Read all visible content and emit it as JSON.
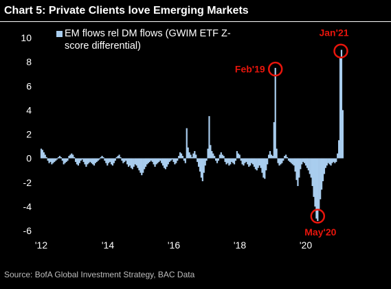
{
  "title": "Chart 5: Private Clients love Emerging Markets",
  "source": "Source:  BofA Global Investment Strategy, BAC Data",
  "colors": {
    "bar": "#a9cdee",
    "highlight": "#e8150c",
    "text": "#ffffff",
    "background": "#000000"
  },
  "chart_data": {
    "type": "bar",
    "series": [
      {
        "name": "EM flows rel DM flows (GWIM ETF Z-score differential)"
      }
    ],
    "ylim": [
      -6,
      10
    ],
    "yticks": [
      "-6",
      "-4",
      "-2",
      "0",
      "2",
      "4",
      "6",
      "8",
      "10"
    ],
    "xlim": [
      2012,
      2021.3
    ],
    "xticks": [
      "'12",
      "'14",
      "'16",
      "'18",
      "'20"
    ],
    "grid": false,
    "legend_position": "top-left",
    "points": [
      [
        2012.0,
        0.8
      ],
      [
        2012.04,
        0.7
      ],
      [
        2012.08,
        0.5
      ],
      [
        2012.12,
        0.3
      ],
      [
        2012.16,
        0.1
      ],
      [
        2012.2,
        -0.2
      ],
      [
        2012.24,
        -0.4
      ],
      [
        2012.28,
        -0.3
      ],
      [
        2012.32,
        -0.5
      ],
      [
        2012.36,
        -0.4
      ],
      [
        2012.4,
        -0.3
      ],
      [
        2012.44,
        -0.2
      ],
      [
        2012.48,
        -0.1
      ],
      [
        2012.52,
        0.1
      ],
      [
        2012.56,
        0.2
      ],
      [
        2012.6,
        0.1
      ],
      [
        2012.64,
        -0.2
      ],
      [
        2012.68,
        -0.5
      ],
      [
        2012.72,
        -0.4
      ],
      [
        2012.76,
        -0.3
      ],
      [
        2012.8,
        -0.2
      ],
      [
        2012.84,
        0.2
      ],
      [
        2012.88,
        0.3
      ],
      [
        2012.92,
        0.4
      ],
      [
        2012.96,
        0.3
      ],
      [
        2013.0,
        0.1
      ],
      [
        2013.04,
        -0.3
      ],
      [
        2013.08,
        -0.5
      ],
      [
        2013.12,
        -0.6
      ],
      [
        2013.16,
        -0.4
      ],
      [
        2013.2,
        -0.2
      ],
      [
        2013.24,
        -0.1
      ],
      [
        2013.28,
        -0.3
      ],
      [
        2013.32,
        -0.5
      ],
      [
        2013.36,
        -0.7
      ],
      [
        2013.4,
        -0.5
      ],
      [
        2013.44,
        -0.4
      ],
      [
        2013.48,
        -0.3
      ],
      [
        2013.52,
        -0.4
      ],
      [
        2013.56,
        -0.5
      ],
      [
        2013.6,
        -0.6
      ],
      [
        2013.64,
        -0.4
      ],
      [
        2013.68,
        -0.3
      ],
      [
        2013.72,
        -0.2
      ],
      [
        2013.76,
        -0.1
      ],
      [
        2013.8,
        0.1
      ],
      [
        2013.84,
        0.2
      ],
      [
        2013.88,
        0.1
      ],
      [
        2013.92,
        -0.2
      ],
      [
        2013.96,
        -0.4
      ],
      [
        2014.0,
        -0.6
      ],
      [
        2014.04,
        -0.4
      ],
      [
        2014.08,
        -0.3
      ],
      [
        2014.12,
        -0.5
      ],
      [
        2014.16,
        -0.6
      ],
      [
        2014.2,
        -0.4
      ],
      [
        2014.24,
        -0.2
      ],
      [
        2014.28,
        0.1
      ],
      [
        2014.32,
        0.2
      ],
      [
        2014.36,
        0.3
      ],
      [
        2014.4,
        0.1
      ],
      [
        2014.44,
        -0.2
      ],
      [
        2014.48,
        -0.4
      ],
      [
        2014.52,
        -0.3
      ],
      [
        2014.56,
        -0.2
      ],
      [
        2014.6,
        -0.5
      ],
      [
        2014.64,
        -0.7
      ],
      [
        2014.68,
        -0.6
      ],
      [
        2014.72,
        -0.8
      ],
      [
        2014.76,
        -0.9
      ],
      [
        2014.8,
        -0.7
      ],
      [
        2014.84,
        -0.5
      ],
      [
        2014.88,
        -0.6
      ],
      [
        2014.92,
        -0.8
      ],
      [
        2014.96,
        -1.0
      ],
      [
        2015.0,
        -1.2
      ],
      [
        2015.04,
        -1.4
      ],
      [
        2015.08,
        -1.2
      ],
      [
        2015.12,
        -0.9
      ],
      [
        2015.16,
        -0.7
      ],
      [
        2015.2,
        -0.5
      ],
      [
        2015.24,
        -0.4
      ],
      [
        2015.28,
        -0.3
      ],
      [
        2015.32,
        -0.2
      ],
      [
        2015.36,
        -0.3
      ],
      [
        2015.4,
        -0.5
      ],
      [
        2015.44,
        -0.7
      ],
      [
        2015.48,
        -0.5
      ],
      [
        2015.52,
        -0.4
      ],
      [
        2015.56,
        -0.3
      ],
      [
        2015.6,
        -0.2
      ],
      [
        2015.64,
        -0.4
      ],
      [
        2015.68,
        -0.6
      ],
      [
        2015.72,
        -0.8
      ],
      [
        2015.76,
        -0.9
      ],
      [
        2015.8,
        -0.7
      ],
      [
        2015.84,
        -0.5
      ],
      [
        2015.88,
        -0.3
      ],
      [
        2015.92,
        -0.2
      ],
      [
        2015.96,
        -0.1
      ],
      [
        2016.0,
        -0.3
      ],
      [
        2016.04,
        -0.5
      ],
      [
        2016.08,
        -0.4
      ],
      [
        2016.12,
        -0.2
      ],
      [
        2016.16,
        0.2
      ],
      [
        2016.2,
        0.5
      ],
      [
        2016.24,
        0.4
      ],
      [
        2016.28,
        0.2
      ],
      [
        2016.32,
        -0.2
      ],
      [
        2016.36,
        -0.4
      ],
      [
        2016.4,
        2.5
      ],
      [
        2016.44,
        0.9
      ],
      [
        2016.48,
        0.5
      ],
      [
        2016.52,
        0.3
      ],
      [
        2016.56,
        0.1
      ],
      [
        2016.6,
        0.4
      ],
      [
        2016.64,
        0.6
      ],
      [
        2016.68,
        0.3
      ],
      [
        2016.72,
        -0.3
      ],
      [
        2016.76,
        -0.7
      ],
      [
        2016.8,
        -1.1
      ],
      [
        2016.84,
        -1.6
      ],
      [
        2016.88,
        -1.9
      ],
      [
        2016.92,
        -1.2
      ],
      [
        2016.96,
        -0.6
      ],
      [
        2017.0,
        -0.2
      ],
      [
        2017.04,
        0.8
      ],
      [
        2017.08,
        3.5
      ],
      [
        2017.12,
        1.1
      ],
      [
        2017.16,
        0.6
      ],
      [
        2017.2,
        0.4
      ],
      [
        2017.24,
        0.2
      ],
      [
        2017.28,
        -0.2
      ],
      [
        2017.32,
        -0.4
      ],
      [
        2017.36,
        -0.2
      ],
      [
        2017.4,
        0.3
      ],
      [
        2017.44,
        0.5
      ],
      [
        2017.48,
        0.3
      ],
      [
        2017.52,
        0.2
      ],
      [
        2017.56,
        -0.3
      ],
      [
        2017.6,
        -0.5
      ],
      [
        2017.64,
        -0.4
      ],
      [
        2017.68,
        -0.6
      ],
      [
        2017.72,
        -0.5
      ],
      [
        2017.76,
        -0.3
      ],
      [
        2017.8,
        -0.4
      ],
      [
        2017.84,
        -0.5
      ],
      [
        2017.88,
        -0.2
      ],
      [
        2017.92,
        0.6
      ],
      [
        2017.96,
        0.4
      ],
      [
        2018.0,
        0.3
      ],
      [
        2018.04,
        -0.2
      ],
      [
        2018.08,
        -0.5
      ],
      [
        2018.12,
        -0.6
      ],
      [
        2018.16,
        -0.4
      ],
      [
        2018.2,
        -0.3
      ],
      [
        2018.24,
        -0.5
      ],
      [
        2018.28,
        -0.7
      ],
      [
        2018.32,
        -0.6
      ],
      [
        2018.36,
        -0.4
      ],
      [
        2018.4,
        -0.5
      ],
      [
        2018.44,
        -0.7
      ],
      [
        2018.48,
        -0.9
      ],
      [
        2018.52,
        -1.0
      ],
      [
        2018.56,
        -0.8
      ],
      [
        2018.6,
        -0.6
      ],
      [
        2018.64,
        -0.8
      ],
      [
        2018.68,
        -1.2
      ],
      [
        2018.72,
        -1.6
      ],
      [
        2018.76,
        -1.7
      ],
      [
        2018.8,
        -1.0
      ],
      [
        2018.84,
        -0.5
      ],
      [
        2018.88,
        0.3
      ],
      [
        2018.92,
        0.6
      ],
      [
        2018.96,
        0.3
      ],
      [
        2019.0,
        0.2
      ],
      [
        2019.04,
        3.0
      ],
      [
        2019.08,
        7.5
      ],
      [
        2019.12,
        0.8
      ],
      [
        2019.16,
        -0.4
      ],
      [
        2019.2,
        -0.6
      ],
      [
        2019.24,
        -0.5
      ],
      [
        2019.28,
        -0.4
      ],
      [
        2019.32,
        -0.2
      ],
      [
        2019.36,
        0.2
      ],
      [
        2019.4,
        0.3
      ],
      [
        2019.44,
        0.1
      ],
      [
        2019.48,
        -0.2
      ],
      [
        2019.52,
        -0.3
      ],
      [
        2019.56,
        -0.4
      ],
      [
        2019.6,
        -0.5
      ],
      [
        2019.64,
        -0.6
      ],
      [
        2019.68,
        -1.1
      ],
      [
        2019.72,
        -1.8
      ],
      [
        2019.76,
        -2.3
      ],
      [
        2019.8,
        -1.6
      ],
      [
        2019.84,
        -0.9
      ],
      [
        2019.88,
        -0.5
      ],
      [
        2019.92,
        -0.3
      ],
      [
        2019.96,
        -0.4
      ],
      [
        2020.0,
        -0.6
      ],
      [
        2020.04,
        -0.8
      ],
      [
        2020.08,
        -1.0
      ],
      [
        2020.12,
        -1.3
      ],
      [
        2020.16,
        -1.6
      ],
      [
        2020.2,
        -2.3
      ],
      [
        2020.24,
        -3.2
      ],
      [
        2020.28,
        -4.0
      ],
      [
        2020.32,
        -5.0
      ],
      [
        2020.36,
        -5.2
      ],
      [
        2020.4,
        -4.2
      ],
      [
        2020.44,
        -3.4
      ],
      [
        2020.48,
        -2.6
      ],
      [
        2020.52,
        -1.9
      ],
      [
        2020.56,
        -1.3
      ],
      [
        2020.6,
        -0.8
      ],
      [
        2020.64,
        -0.6
      ],
      [
        2020.68,
        -0.4
      ],
      [
        2020.72,
        -0.5
      ],
      [
        2020.76,
        -0.6
      ],
      [
        2020.8,
        -0.4
      ],
      [
        2020.84,
        -0.3
      ],
      [
        2020.88,
        -0.4
      ],
      [
        2020.92,
        -0.3
      ],
      [
        2020.96,
        0.4
      ],
      [
        2021.0,
        1.5
      ],
      [
        2021.04,
        8.3
      ],
      [
        2021.08,
        9.0
      ],
      [
        2021.12,
        4.0
      ]
    ],
    "annotations": [
      {
        "label": "Jan'21",
        "x": 2021.06,
        "y": 8.9,
        "label_side": "above"
      },
      {
        "label": "Feb'19",
        "x": 2019.08,
        "y": 7.4,
        "label_side": "left"
      },
      {
        "label": "May'20",
        "x": 2020.36,
        "y": -4.8,
        "label_side": "below"
      }
    ]
  }
}
